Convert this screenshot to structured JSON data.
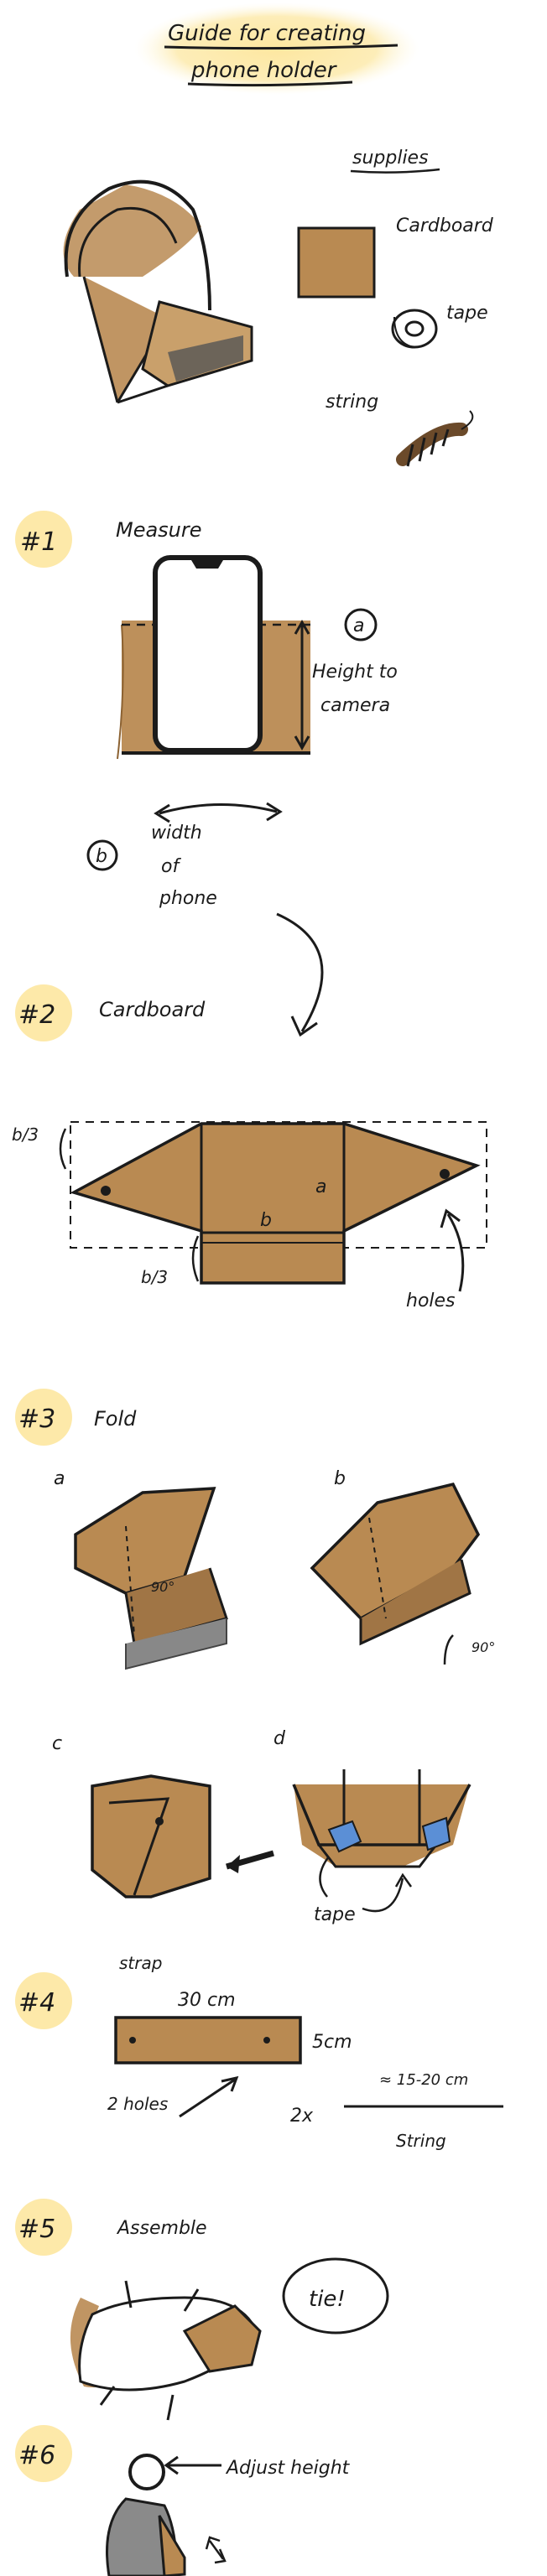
{
  "title": {
    "line1": "Guide for creating",
    "line2": "phone holder"
  },
  "supplies": {
    "heading": "supplies",
    "cardboard": "Cardboard",
    "tape": "tape",
    "string": "string"
  },
  "steps": [
    {
      "number": "#1",
      "title": "Measure"
    },
    {
      "number": "#2",
      "title": "Cardboard"
    },
    {
      "number": "#3",
      "title": "Fold"
    },
    {
      "number": "#4",
      "title": "strap"
    },
    {
      "number": "#5",
      "title": "Assemble"
    },
    {
      "number": "#6",
      "title": "Adjust height"
    }
  ],
  "measure": {
    "marker_a": "a",
    "height_label": [
      "Height to",
      "camera"
    ],
    "marker_b": "b",
    "width_label": [
      "width",
      "of",
      "phone"
    ]
  },
  "cardboard": {
    "dim_top": "b/3",
    "label_a": "a",
    "label_b": "b",
    "dim_bottom": "b/3",
    "holes": "holes"
  },
  "fold": {
    "sub_a": "a",
    "sub_b": "b",
    "sub_c": "c",
    "sub_d": "d",
    "angle_a": "90°",
    "angle_b": "90°",
    "tape_label": "tape"
  },
  "strap": {
    "length": "30 cm",
    "width": "5cm",
    "holes": "2 holes",
    "qty": "2x",
    "string_len": "≈ 15-20 cm",
    "string": "String"
  },
  "assemble": {
    "tie": "tie!"
  },
  "colors": {
    "cardboard": "#b98a52",
    "cardboard_dark": "#8c6232",
    "highlight": "#fde9a3",
    "tape": "#5b8fd6",
    "ink": "#1b1b1b"
  }
}
